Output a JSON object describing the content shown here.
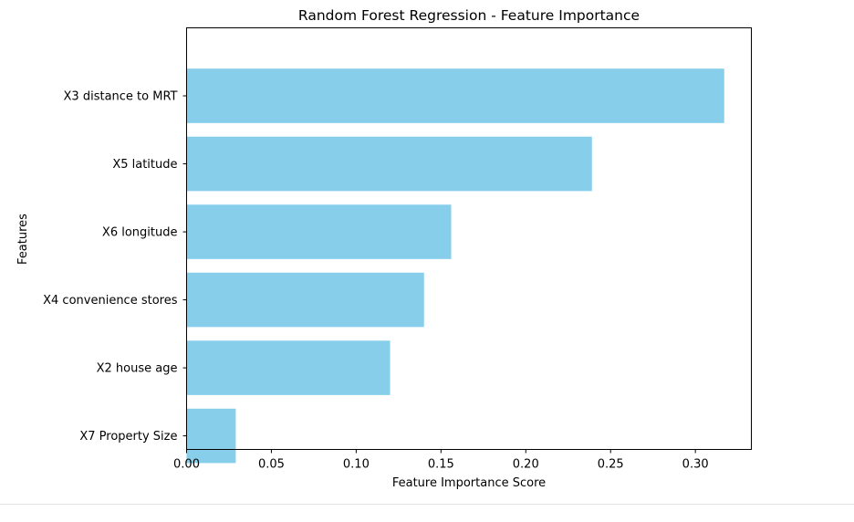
{
  "chart_data": {
    "type": "bar",
    "orientation": "horizontal",
    "title": "Random Forest Regression - Feature Importance",
    "xlabel": "Feature Importance Score",
    "ylabel": "Features",
    "categories": [
      "X3 distance to MRT",
      "X5 latitude",
      "X6 longitude",
      "X4 convenience stores",
      "X2 house age",
      "X7 Property Size"
    ],
    "values": [
      0.317,
      0.239,
      0.156,
      0.14,
      0.12,
      0.029
    ],
    "xlim": [
      0,
      0.333
    ],
    "xticks": [
      0.0,
      0.05,
      0.1,
      0.15,
      0.2,
      0.25,
      0.3
    ],
    "xtick_labels": [
      "0.00",
      "0.05",
      "0.10",
      "0.15",
      "0.20",
      "0.25",
      "0.30"
    ],
    "grid": false,
    "bar_color": "#87ceeb"
  }
}
